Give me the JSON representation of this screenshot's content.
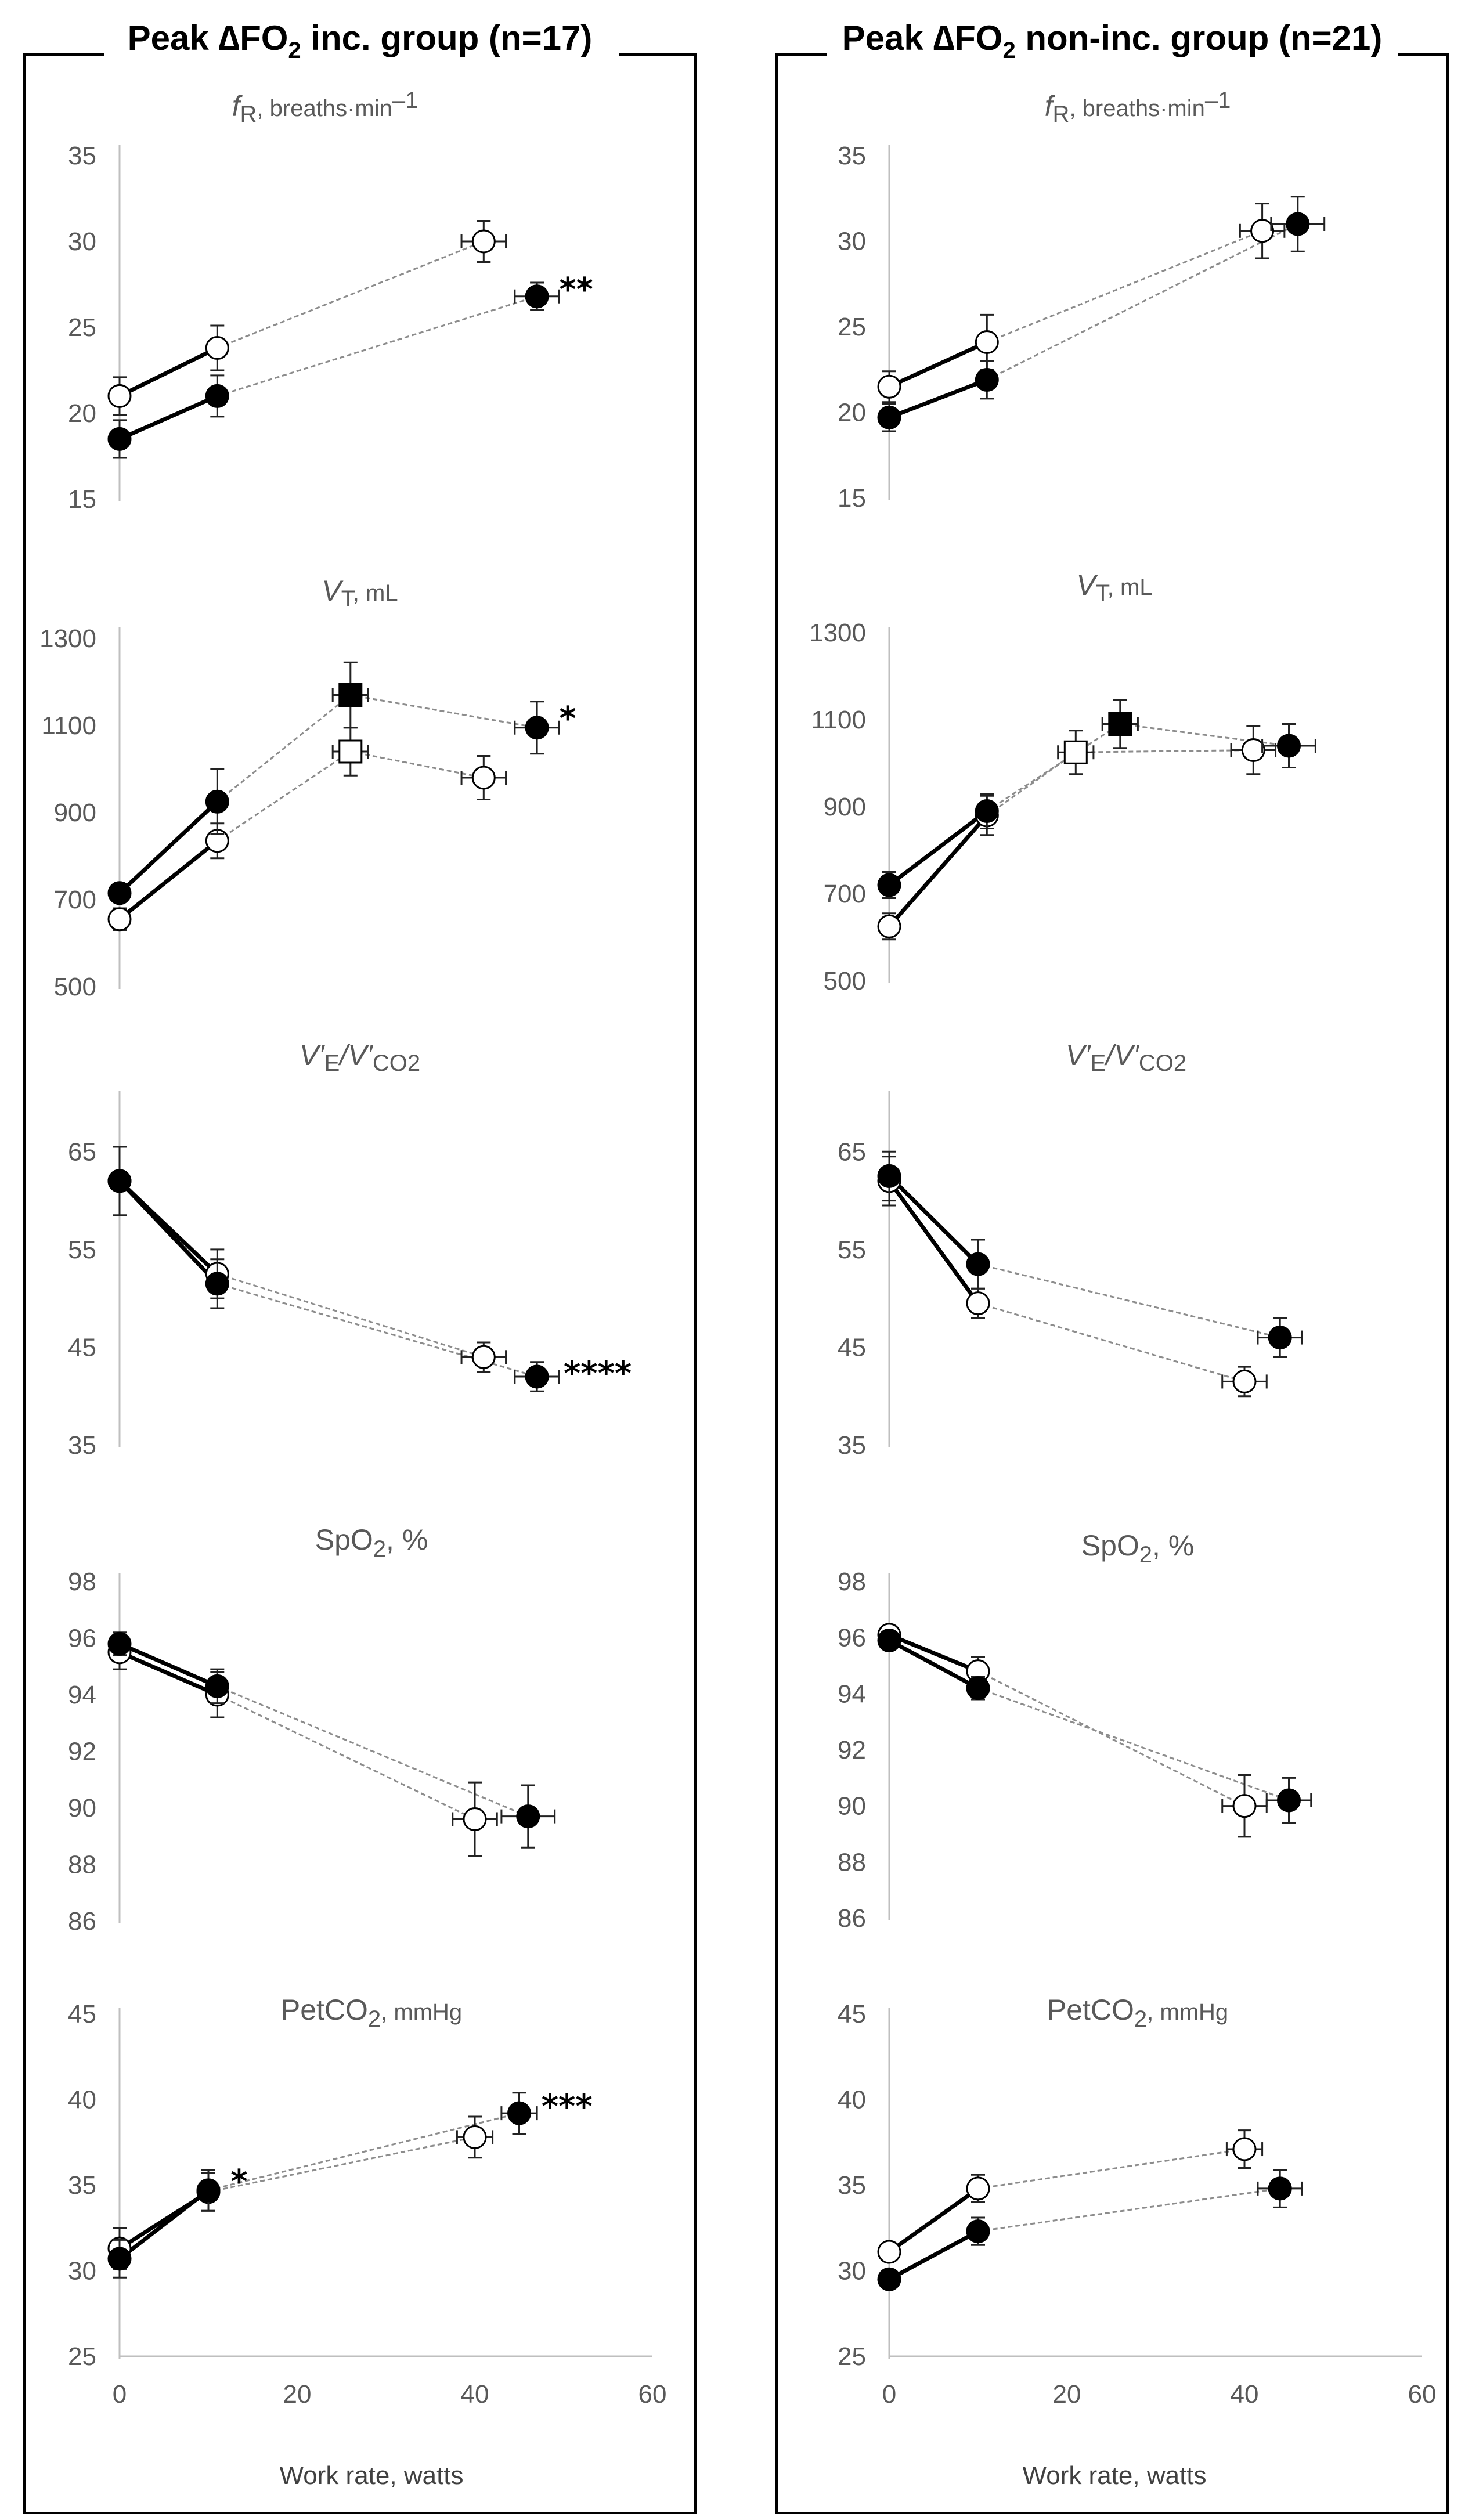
{
  "panels": [
    {
      "title_prefix": "Peak ",
      "title_delta": "∆FO",
      "title_sub": "2",
      "title_suffix": " inc. group (n=17)"
    },
    {
      "title_prefix": "Peak ",
      "title_delta": "∆FO",
      "title_sub": "2",
      "title_suffix": " non-inc. group (n=21)"
    }
  ],
  "xlabel": "Work rate, watts",
  "x_ticks": [
    "0",
    "20",
    "40",
    "60"
  ],
  "chart_titles": [
    {
      "main": "f",
      "sub": "R",
      "rest": ", breaths·min",
      "sup": "–1"
    },
    {
      "main": "V",
      "sub": "T",
      "rest": ", mL",
      "sup": ""
    },
    {
      "main": "V′",
      "sub": "E",
      "rest": "/V′",
      "sub2": "CO2"
    },
    {
      "main": "SpO",
      "sub": "2",
      "rest": ", %",
      "sup": ""
    },
    {
      "main": "PetCO",
      "sub": "2",
      "rest": ", mmHg",
      "sup": ""
    }
  ],
  "chart_data": [
    {
      "type": "scatter",
      "panel": 0,
      "row": 0,
      "xlim": [
        0,
        60
      ],
      "ylim": [
        15,
        35
      ],
      "yticks": [
        15,
        20,
        25,
        30,
        35
      ],
      "series": [
        {
          "marker": "open-circle",
          "points": [
            {
              "x": 0,
              "y": 21,
              "yerr": 1.1,
              "xerr": 0
            },
            {
              "x": 11,
              "y": 23.8,
              "yerr": 1.3,
              "xerr": 0
            },
            {
              "x": 41,
              "y": 30,
              "yerr": 1.2,
              "xerr": 2.5
            }
          ],
          "connect": [
            "b01",
            "g12"
          ]
        },
        {
          "marker": "filled-circle",
          "points": [
            {
              "x": 0,
              "y": 18.5,
              "yerr": 1.1,
              "xerr": 0
            },
            {
              "x": 11,
              "y": 21,
              "yerr": 1.2,
              "xerr": 0
            },
            {
              "x": 47,
              "y": 26.8,
              "yerr": 0.8,
              "xerr": 2.5
            }
          ],
          "connect": [
            "b01",
            "g12"
          ]
        }
      ],
      "annotations": [
        {
          "text": "**",
          "x": 49.5,
          "y": 27.3
        }
      ]
    },
    {
      "type": "scatter",
      "panel": 0,
      "row": 1,
      "xlim": [
        0,
        60
      ],
      "ylim": [
        500,
        1300
      ],
      "yticks": [
        500,
        700,
        900,
        1100,
        1300
      ],
      "series": [
        {
          "marker": "open-circle",
          "points": [
            {
              "x": 0,
              "y": 655,
              "yerr": 25,
              "xerr": 0
            },
            {
              "x": 11,
              "y": 835,
              "yerr": 40,
              "xerr": 0
            }
          ],
          "connect": [
            "b01"
          ]
        },
        {
          "marker": "open-square",
          "points": [
            {
              "x": 26,
              "y": 1040,
              "yerr": 55,
              "xerr": 2
            }
          ],
          "connect": []
        },
        {
          "marker": "open-circle",
          "points": [
            {
              "x": 41,
              "y": 980,
              "yerr": 50,
              "xerr": 2.5
            }
          ],
          "connect": []
        },
        {
          "marker": "filled-circle",
          "points": [
            {
              "x": 0,
              "y": 715,
              "yerr": 20,
              "xerr": 0
            },
            {
              "x": 11,
              "y": 925,
              "yerr": 75,
              "xerr": 0
            }
          ],
          "connect": [
            "b01"
          ]
        },
        {
          "marker": "filled-square",
          "points": [
            {
              "x": 26,
              "y": 1170,
              "yerr": 75,
              "xerr": 2
            }
          ],
          "connect": []
        },
        {
          "marker": "filled-circle",
          "points": [
            {
              "x": 47,
              "y": 1095,
              "yerr": 60,
              "xerr": 2.5
            }
          ],
          "connect": []
        }
      ],
      "extra_lines": [
        {
          "style": "g",
          "from": [
            11,
            835
          ],
          "to": [
            26,
            1040
          ]
        },
        {
          "style": "g",
          "from": [
            26,
            1040
          ],
          "to": [
            41,
            980
          ]
        },
        {
          "style": "g",
          "from": [
            11,
            925
          ],
          "to": [
            26,
            1170
          ]
        },
        {
          "style": "g",
          "from": [
            26,
            1170
          ],
          "to": [
            47,
            1095
          ]
        }
      ],
      "annotations": [
        {
          "text": "*",
          "x": 49.5,
          "y": 1120
        }
      ]
    },
    {
      "type": "scatter",
      "panel": 0,
      "row": 2,
      "xlim": [
        0,
        60
      ],
      "ylim": [
        35,
        70
      ],
      "yticks": [
        35,
        45,
        55,
        65
      ],
      "series": [
        {
          "marker": "open-circle",
          "points": [
            {
              "x": 0,
              "y": 62,
              "yerr": 3.5,
              "xerr": 0
            },
            {
              "x": 11,
              "y": 52.5,
              "yerr": 2.5,
              "xerr": 0
            },
            {
              "x": 41,
              "y": 44,
              "yerr": 1.5,
              "xerr": 2.5
            }
          ],
          "connect": [
            "b01",
            "g12"
          ]
        },
        {
          "marker": "filled-circle",
          "points": [
            {
              "x": 0,
              "y": 62,
              "yerr": 3.5,
              "xerr": 0
            },
            {
              "x": 11,
              "y": 51.5,
              "yerr": 2.5,
              "xerr": 0
            },
            {
              "x": 47,
              "y": 42,
              "yerr": 1.5,
              "xerr": 2.5
            }
          ],
          "connect": [
            "b01",
            "g12"
          ]
        }
      ],
      "annotations": [
        {
          "text": "****",
          "x": 50,
          "y": 42.5
        }
      ]
    },
    {
      "type": "scatter",
      "panel": 0,
      "row": 3,
      "xlim": [
        0,
        60
      ],
      "ylim": [
        86,
        98
      ],
      "yticks": [
        86,
        88,
        90,
        92,
        94,
        96,
        98
      ],
      "series": [
        {
          "marker": "open-circle",
          "points": [
            {
              "x": 0,
              "y": 95.5,
              "yerr": 0.6,
              "xerr": 0
            },
            {
              "x": 11,
              "y": 94,
              "yerr": 0.8,
              "xerr": 0
            },
            {
              "x": 40,
              "y": 89.6,
              "yerr": 1.3,
              "xerr": 2.5
            }
          ],
          "connect": [
            "b01",
            "g12"
          ]
        },
        {
          "marker": "filled-circle",
          "points": [
            {
              "x": 0,
              "y": 95.8,
              "yerr": 0.4,
              "xerr": 0
            },
            {
              "x": 11,
              "y": 94.3,
              "yerr": 0.6,
              "xerr": 0
            },
            {
              "x": 46,
              "y": 89.7,
              "yerr": 1.1,
              "xerr": 3
            }
          ],
          "connect": [
            "b01",
            "g12"
          ]
        }
      ],
      "annotations": []
    },
    {
      "type": "scatter",
      "panel": 0,
      "row": 4,
      "xlim": [
        0,
        60
      ],
      "ylim": [
        25,
        45
      ],
      "yticks": [
        25,
        30,
        35,
        40,
        45
      ],
      "series": [
        {
          "marker": "open-circle",
          "points": [
            {
              "x": 0,
              "y": 31.3,
              "yerr": 1.2,
              "xerr": 0
            },
            {
              "x": 10,
              "y": 34.6,
              "yerr": 1.1,
              "xerr": 0
            },
            {
              "x": 40,
              "y": 37.8,
              "yerr": 1.2,
              "xerr": 2
            }
          ],
          "connect": [
            "b01",
            "g12"
          ]
        },
        {
          "marker": "filled-circle",
          "points": [
            {
              "x": 0,
              "y": 30.7,
              "yerr": 1.1,
              "xerr": 0
            },
            {
              "x": 10,
              "y": 34.7,
              "yerr": 1.2,
              "xerr": 0
            },
            {
              "x": 45,
              "y": 39.2,
              "yerr": 1.2,
              "xerr": 2
            }
          ],
          "connect": [
            "b01",
            "g12"
          ]
        }
      ],
      "annotations": [
        {
          "text": "*",
          "x": 12.5,
          "y": 35.3
        },
        {
          "text": "***",
          "x": 47.5,
          "y": 39.7
        }
      ]
    },
    {
      "type": "scatter",
      "panel": 1,
      "row": 0,
      "xlim": [
        0,
        60
      ],
      "ylim": [
        15,
        35
      ],
      "yticks": [
        15,
        20,
        25,
        30,
        35
      ],
      "series": [
        {
          "marker": "open-circle",
          "points": [
            {
              "x": 0,
              "y": 21.5,
              "yerr": 0.9,
              "xerr": 0
            },
            {
              "x": 11,
              "y": 24.1,
              "yerr": 1.6,
              "xerr": 0
            },
            {
              "x": 42,
              "y": 30.6,
              "yerr": 1.6,
              "xerr": 2.5
            }
          ],
          "connect": [
            "b01",
            "g12"
          ]
        },
        {
          "marker": "filled-circle",
          "points": [
            {
              "x": 0,
              "y": 19.7,
              "yerr": 0.8,
              "xerr": 0
            },
            {
              "x": 11,
              "y": 21.9,
              "yerr": 1.1,
              "xerr": 0
            },
            {
              "x": 46,
              "y": 31,
              "yerr": 1.6,
              "xerr": 3
            }
          ],
          "connect": [
            "b01",
            "g12"
          ]
        }
      ],
      "annotations": []
    },
    {
      "type": "scatter",
      "panel": 1,
      "row": 1,
      "xlim": [
        0,
        60
      ],
      "ylim": [
        500,
        1300
      ],
      "yticks": [
        500,
        700,
        900,
        1100,
        1300
      ],
      "series": [
        {
          "marker": "open-circle",
          "points": [
            {
              "x": 0,
              "y": 625,
              "yerr": 30,
              "xerr": 0
            },
            {
              "x": 11,
              "y": 880,
              "yerr": 45,
              "xerr": 0
            }
          ],
          "connect": [
            "b01"
          ]
        },
        {
          "marker": "open-square",
          "points": [
            {
              "x": 21,
              "y": 1025,
              "yerr": 50,
              "xerr": 2
            }
          ],
          "connect": []
        },
        {
          "marker": "open-circle",
          "points": [
            {
              "x": 41,
              "y": 1030,
              "yerr": 55,
              "xerr": 2.5
            }
          ],
          "connect": []
        },
        {
          "marker": "filled-circle",
          "points": [
            {
              "x": 0,
              "y": 720,
              "yerr": 30,
              "xerr": 0
            },
            {
              "x": 11,
              "y": 890,
              "yerr": 40,
              "xerr": 0
            }
          ],
          "connect": [
            "b01"
          ]
        },
        {
          "marker": "filled-square",
          "points": [
            {
              "x": 26,
              "y": 1090,
              "yerr": 55,
              "xerr": 2
            }
          ],
          "connect": []
        },
        {
          "marker": "filled-circle",
          "points": [
            {
              "x": 45,
              "y": 1040,
              "yerr": 50,
              "xerr": 3
            }
          ],
          "connect": []
        }
      ],
      "extra_lines": [
        {
          "style": "g",
          "from": [
            11,
            880
          ],
          "to": [
            21,
            1025
          ]
        },
        {
          "style": "g",
          "from": [
            21,
            1025
          ],
          "to": [
            41,
            1030
          ]
        },
        {
          "style": "g",
          "from": [
            11,
            890
          ],
          "to": [
            26,
            1090
          ]
        },
        {
          "style": "g",
          "from": [
            26,
            1090
          ],
          "to": [
            45,
            1040
          ]
        }
      ],
      "annotations": []
    },
    {
      "type": "scatter",
      "panel": 1,
      "row": 2,
      "xlim": [
        0,
        60
      ],
      "ylim": [
        35,
        70
      ],
      "yticks": [
        35,
        45,
        55,
        65
      ],
      "series": [
        {
          "marker": "open-circle",
          "points": [
            {
              "x": 0,
              "y": 62,
              "yerr": 2.5,
              "xerr": 0
            },
            {
              "x": 10,
              "y": 49.5,
              "yerr": 1.5,
              "xerr": 0
            },
            {
              "x": 40,
              "y": 41.5,
              "yerr": 1.5,
              "xerr": 2.5
            }
          ],
          "connect": [
            "b01",
            "g12"
          ]
        },
        {
          "marker": "filled-circle",
          "points": [
            {
              "x": 0,
              "y": 62.5,
              "yerr": 2.5,
              "xerr": 0
            },
            {
              "x": 10,
              "y": 53.5,
              "yerr": 2.5,
              "xerr": 0
            },
            {
              "x": 44,
              "y": 46,
              "yerr": 2,
              "xerr": 2.5
            }
          ],
          "connect": [
            "b01",
            "g12"
          ]
        }
      ],
      "annotations": []
    },
    {
      "type": "scatter",
      "panel": 1,
      "row": 3,
      "xlim": [
        0,
        60
      ],
      "ylim": [
        86,
        98
      ],
      "yticks": [
        86,
        88,
        90,
        92,
        94,
        96,
        98
      ],
      "series": [
        {
          "marker": "open-circle",
          "points": [
            {
              "x": 0,
              "y": 96.1,
              "yerr": 0.3,
              "xerr": 0
            },
            {
              "x": 10,
              "y": 94.8,
              "yerr": 0.5,
              "xerr": 0
            },
            {
              "x": 40,
              "y": 90,
              "yerr": 1.1,
              "xerr": 2.5
            }
          ],
          "connect": [
            "b01",
            "g12"
          ]
        },
        {
          "marker": "filled-circle",
          "points": [
            {
              "x": 0,
              "y": 95.9,
              "yerr": 0.3,
              "xerr": 0
            },
            {
              "x": 10,
              "y": 94.2,
              "yerr": 0.4,
              "xerr": 0
            },
            {
              "x": 45,
              "y": 90.2,
              "yerr": 0.8,
              "xerr": 2.5
            }
          ],
          "connect": [
            "b01",
            "g12"
          ]
        }
      ],
      "annotations": []
    },
    {
      "type": "scatter",
      "panel": 1,
      "row": 4,
      "xlim": [
        0,
        60
      ],
      "ylim": [
        25,
        45
      ],
      "yticks": [
        25,
        30,
        35,
        40,
        45
      ],
      "series": [
        {
          "marker": "open-circle",
          "points": [
            {
              "x": 0,
              "y": 31.1,
              "yerr": 0.5,
              "xerr": 0
            },
            {
              "x": 10,
              "y": 34.8,
              "yerr": 0.8,
              "xerr": 0
            },
            {
              "x": 40,
              "y": 37.1,
              "yerr": 1.1,
              "xerr": 2
            }
          ],
          "connect": [
            "b01",
            "g12"
          ]
        },
        {
          "marker": "filled-circle",
          "points": [
            {
              "x": 0,
              "y": 29.5,
              "yerr": 0.4,
              "xerr": 0
            },
            {
              "x": 10,
              "y": 32.3,
              "yerr": 0.8,
              "xerr": 0
            },
            {
              "x": 44,
              "y": 34.8,
              "yerr": 1.1,
              "xerr": 2.5
            }
          ],
          "connect": [
            "b01",
            "g12"
          ]
        }
      ],
      "annotations": []
    }
  ]
}
